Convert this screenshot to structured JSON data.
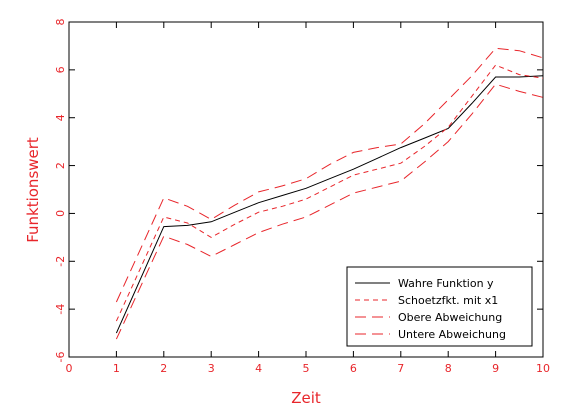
{
  "chart_data": {
    "type": "line",
    "title": "",
    "xlabel": "Zeit",
    "ylabel": "Funktionswert",
    "xlim": [
      0,
      10
    ],
    "ylim": [
      -6,
      8
    ],
    "xticks": [
      0,
      1,
      2,
      3,
      4,
      5,
      6,
      7,
      8,
      9,
      10
    ],
    "yticks": [
      -6,
      -4,
      -2,
      0,
      2,
      4,
      6,
      8
    ],
    "x": [
      1,
      2,
      2.5,
      3,
      3.5,
      4,
      4.5,
      5,
      5.5,
      6,
      6.5,
      7,
      7.5,
      8,
      8.5,
      9,
      9.5,
      10
    ],
    "series": [
      {
        "name": "Wahre Funktion y",
        "color": "#000000",
        "dash": "solid",
        "values": [
          -5.0,
          -0.55,
          -0.5,
          -0.35,
          0.05,
          0.45,
          0.75,
          1.05,
          1.45,
          1.85,
          2.3,
          2.75,
          3.15,
          3.55,
          4.6,
          5.7,
          5.7,
          5.75
        ]
      },
      {
        "name": "Schoetzfkt. mit x1",
        "color": "#e8262b",
        "dash": "short",
        "values": [
          -4.5,
          -0.15,
          -0.4,
          -1.0,
          -0.45,
          0.05,
          0.3,
          0.6,
          1.1,
          1.6,
          1.85,
          2.1,
          2.8,
          3.6,
          4.9,
          6.2,
          5.8,
          5.65
        ]
      },
      {
        "name": "Obere Abweichung",
        "color": "#e8262b",
        "dash": "long",
        "values": [
          -3.7,
          0.65,
          0.3,
          -0.25,
          0.35,
          0.9,
          1.15,
          1.45,
          2.05,
          2.55,
          2.75,
          2.9,
          3.75,
          4.75,
          5.75,
          6.9,
          6.8,
          6.5
        ]
      },
      {
        "name": "Untere Abweichung",
        "color": "#e8262b",
        "dash": "long",
        "values": [
          -5.25,
          -0.95,
          -1.3,
          -1.8,
          -1.3,
          -0.8,
          -0.45,
          -0.15,
          0.35,
          0.85,
          1.1,
          1.35,
          2.15,
          3.0,
          4.15,
          5.4,
          5.1,
          4.85
        ]
      }
    ],
    "legend_position": "bottom-right",
    "grid": false,
    "colors": {
      "axis": "#e8262b",
      "frame": "#000000"
    }
  }
}
